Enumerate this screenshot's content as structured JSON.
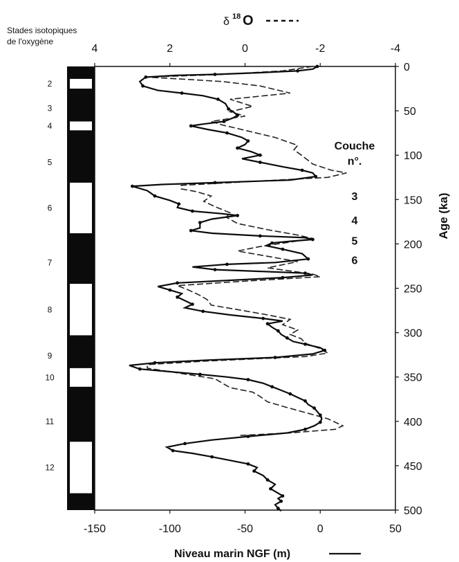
{
  "chart_data": {
    "type": "line",
    "title": "",
    "stages_header": [
      "Stades isotopiques",
      "de l'oxygène"
    ],
    "top_axis": {
      "label_symbol": "δ",
      "label_sup": "18",
      "label_main": "O",
      "ticks": [
        "4",
        "2",
        "0",
        "-2",
        "-4"
      ],
      "tick_values": [
        4,
        2,
        0,
        -2,
        -4
      ],
      "range": [
        4,
        -4
      ]
    },
    "bottom_axis": {
      "label": "Niveau marin NGF (m)",
      "ticks": [
        "-150",
        "-100",
        "-50",
        "0",
        "50"
      ],
      "tick_values": [
        -150,
        -100,
        -50,
        0,
        50
      ],
      "range": [
        -150,
        50
      ]
    },
    "right_axis": {
      "label": "Age (ka)",
      "ticks": [
        "0",
        "50",
        "100",
        "150",
        "200",
        "250",
        "300",
        "350",
        "400",
        "450",
        "500"
      ],
      "tick_values": [
        0,
        50,
        100,
        150,
        200,
        250,
        300,
        350,
        400,
        450,
        500
      ],
      "range": [
        0,
        500
      ]
    },
    "couche": {
      "title_line1": "Couche",
      "title_line2": "n°.",
      "items": [
        {
          "label": "3",
          "age": 146
        },
        {
          "label": "4",
          "age": 173
        },
        {
          "label": "5",
          "age": 196
        },
        {
          "label": "6",
          "age": 218
        }
      ]
    },
    "stages": [
      {
        "label": "2",
        "from": 14,
        "to": 25,
        "color": "white"
      },
      {
        "label": "3",
        "age_label": 47
      },
      {
        "label": "4",
        "from": 62,
        "to": 72,
        "color": "white"
      },
      {
        "label": "5",
        "age_label": 108
      },
      {
        "label": "6",
        "from": 131,
        "to": 188,
        "color": "white"
      },
      {
        "label": "7",
        "age_label": 221
      },
      {
        "label": "8",
        "from": 245,
        "to": 303,
        "color": "white"
      },
      {
        "label": "9",
        "age_label": 326
      },
      {
        "label": "10",
        "from": 340,
        "to": 361,
        "color": "white"
      },
      {
        "label": "11",
        "age_label": 400
      },
      {
        "label": "12",
        "from": 423,
        "to": 481,
        "color": "white"
      }
    ],
    "series": [
      {
        "name": "Niveau marin NGF (m)",
        "style": "solid-dots",
        "axis": "bottom",
        "points": [
          [
            -2,
            0
          ],
          [
            -5,
            3
          ],
          [
            -15,
            5
          ],
          [
            -40,
            7
          ],
          [
            -70,
            9
          ],
          [
            -95,
            10
          ],
          [
            -116,
            12
          ],
          [
            -120,
            17
          ],
          [
            -118,
            22
          ],
          [
            -108,
            27
          ],
          [
            -92,
            30
          ],
          [
            -78,
            33
          ],
          [
            -68,
            37
          ],
          [
            -63,
            42
          ],
          [
            -61,
            48
          ],
          [
            -58,
            51
          ],
          [
            -55,
            55
          ],
          [
            -58,
            58
          ],
          [
            -64,
            62
          ],
          [
            -78,
            65
          ],
          [
            -86,
            67
          ],
          [
            -75,
            71
          ],
          [
            -62,
            75
          ],
          [
            -52,
            80
          ],
          [
            -48,
            84
          ],
          [
            -50,
            88
          ],
          [
            -55,
            92
          ],
          [
            -46,
            96
          ],
          [
            -40,
            100
          ],
          [
            -52,
            104
          ],
          [
            -40,
            108
          ],
          [
            -25,
            113
          ],
          [
            -12,
            117
          ],
          [
            -5,
            120
          ],
          [
            -3,
            124
          ],
          [
            -20,
            128
          ],
          [
            -70,
            131
          ],
          [
            -105,
            133
          ],
          [
            -125,
            135
          ],
          [
            -115,
            140
          ],
          [
            -110,
            146
          ],
          [
            -100,
            151
          ],
          [
            -94,
            155
          ],
          [
            -95,
            159
          ],
          [
            -85,
            163
          ],
          [
            -65,
            166
          ],
          [
            -55,
            168
          ],
          [
            -72,
            172
          ],
          [
            -80,
            176
          ],
          [
            -80,
            182
          ],
          [
            -86,
            185
          ],
          [
            -72,
            188
          ],
          [
            -40,
            191
          ],
          [
            -10,
            193
          ],
          [
            -5,
            195
          ],
          [
            -20,
            197
          ],
          [
            -32,
            199
          ],
          [
            -36,
            202
          ],
          [
            -25,
            206
          ],
          [
            -12,
            211
          ],
          [
            -8,
            217
          ],
          [
            -30,
            221
          ],
          [
            -62,
            223
          ],
          [
            -85,
            226
          ],
          [
            -70,
            229
          ],
          [
            -40,
            231
          ],
          [
            -10,
            233
          ],
          [
            -5,
            235
          ],
          [
            -25,
            238
          ],
          [
            -60,
            241
          ],
          [
            -95,
            244
          ],
          [
            -108,
            248
          ],
          [
            -100,
            252
          ],
          [
            -92,
            256
          ],
          [
            -95,
            260
          ],
          [
            -90,
            264
          ],
          [
            -85,
            268
          ],
          [
            -90,
            272
          ],
          [
            -78,
            276
          ],
          [
            -60,
            280
          ],
          [
            -38,
            284
          ],
          [
            -25,
            287
          ],
          [
            -35,
            290
          ],
          [
            -32,
            294
          ],
          [
            -28,
            298
          ],
          [
            -26,
            302
          ],
          [
            -22,
            306
          ],
          [
            -18,
            310
          ],
          [
            -10,
            313
          ],
          [
            0,
            317
          ],
          [
            3,
            320
          ],
          [
            -5,
            324
          ],
          [
            -30,
            328
          ],
          [
            -75,
            331
          ],
          [
            -110,
            334
          ],
          [
            -127,
            337
          ],
          [
            -120,
            341
          ],
          [
            -100,
            344
          ],
          [
            -80,
            347
          ],
          [
            -62,
            350
          ],
          [
            -48,
            353
          ],
          [
            -38,
            357
          ],
          [
            -32,
            361
          ],
          [
            -26,
            365
          ],
          [
            -20,
            369
          ],
          [
            -15,
            373
          ],
          [
            -10,
            377
          ],
          [
            -8,
            381
          ],
          [
            -4,
            385
          ],
          [
            -2,
            389
          ],
          [
            0,
            393
          ],
          [
            1,
            397
          ],
          [
            0,
            401
          ],
          [
            -4,
            405
          ],
          [
            -10,
            409
          ],
          [
            -22,
            413
          ],
          [
            -48,
            417
          ],
          [
            -72,
            421
          ],
          [
            -90,
            425
          ],
          [
            -102,
            429
          ],
          [
            -98,
            433
          ],
          [
            -85,
            436
          ],
          [
            -72,
            440
          ],
          [
            -60,
            444
          ],
          [
            -48,
            448
          ],
          [
            -42,
            452
          ],
          [
            -44,
            456
          ],
          [
            -38,
            461
          ],
          [
            -35,
            466
          ],
          [
            -30,
            471
          ],
          [
            -33,
            476
          ],
          [
            -28,
            481
          ],
          [
            -25,
            484
          ],
          [
            -28,
            487
          ],
          [
            -26,
            490
          ],
          [
            -30,
            494
          ],
          [
            -28,
            498
          ],
          [
            -26,
            501
          ]
        ]
      },
      {
        "name": "δ18O",
        "style": "dashed",
        "axis": "top",
        "points": [
          [
            -1.8,
            0
          ],
          [
            -1.0,
            5
          ],
          [
            0.6,
            9
          ],
          [
            2.6,
            12
          ],
          [
            1.8,
            14
          ],
          [
            0.6,
            17
          ],
          [
            -0.4,
            22
          ],
          [
            -1.2,
            30
          ],
          [
            0.4,
            37
          ],
          [
            -0.2,
            45
          ],
          [
            0.4,
            51
          ],
          [
            0.0,
            56
          ],
          [
            0.9,
            62
          ],
          [
            0.6,
            66
          ],
          [
            0.0,
            72
          ],
          [
            -0.8,
            80
          ],
          [
            -1.4,
            89
          ],
          [
            -1.3,
            94
          ],
          [
            -1.5,
            100
          ],
          [
            -1.8,
            110
          ],
          [
            -2.3,
            117
          ],
          [
            -2.7,
            120
          ],
          [
            -2.2,
            125
          ],
          [
            0.0,
            130
          ],
          [
            1.7,
            134
          ],
          [
            1.7,
            138
          ],
          [
            1.3,
            141
          ],
          [
            0.9,
            146
          ],
          [
            1.1,
            152
          ],
          [
            0.8,
            158
          ],
          [
            0.4,
            165
          ],
          [
            0.5,
            170
          ],
          [
            0.2,
            177
          ],
          [
            -0.6,
            184
          ],
          [
            -1.4,
            190
          ],
          [
            -1.8,
            194
          ],
          [
            -1.2,
            198
          ],
          [
            -0.4,
            203
          ],
          [
            0.2,
            208
          ],
          [
            -0.6,
            214
          ],
          [
            -1.4,
            220
          ],
          [
            -0.6,
            227
          ],
          [
            -1.8,
            234
          ],
          [
            -2.0,
            237
          ],
          [
            0.0,
            242
          ],
          [
            1.8,
            247
          ],
          [
            1.5,
            252
          ],
          [
            1.2,
            258
          ],
          [
            1.0,
            263
          ],
          [
            0.9,
            269
          ],
          [
            0.2,
            274
          ],
          [
            -0.6,
            280
          ],
          [
            -1.2,
            285
          ],
          [
            -1.0,
            291
          ],
          [
            -1.4,
            297
          ],
          [
            -1.2,
            302
          ],
          [
            -1.5,
            307
          ],
          [
            -1.6,
            312
          ],
          [
            -2.0,
            318
          ],
          [
            -2.2,
            323
          ],
          [
            -1.6,
            327
          ],
          [
            1.0,
            332
          ],
          [
            2.6,
            336
          ],
          [
            2.6,
            340
          ],
          [
            2.0,
            344
          ],
          [
            1.4,
            348
          ],
          [
            0.8,
            352
          ],
          [
            0.6,
            357
          ],
          [
            0.4,
            362
          ],
          [
            -0.2,
            367
          ],
          [
            -0.4,
            372
          ],
          [
            -0.6,
            378
          ],
          [
            -1.0,
            383
          ],
          [
            -1.6,
            390
          ],
          [
            -2.2,
            397
          ],
          [
            -2.4,
            401
          ],
          [
            -2.6,
            405
          ],
          [
            -2.4,
            409
          ],
          [
            -1.2,
            413
          ],
          [
            0.2,
            416
          ]
        ]
      }
    ]
  }
}
